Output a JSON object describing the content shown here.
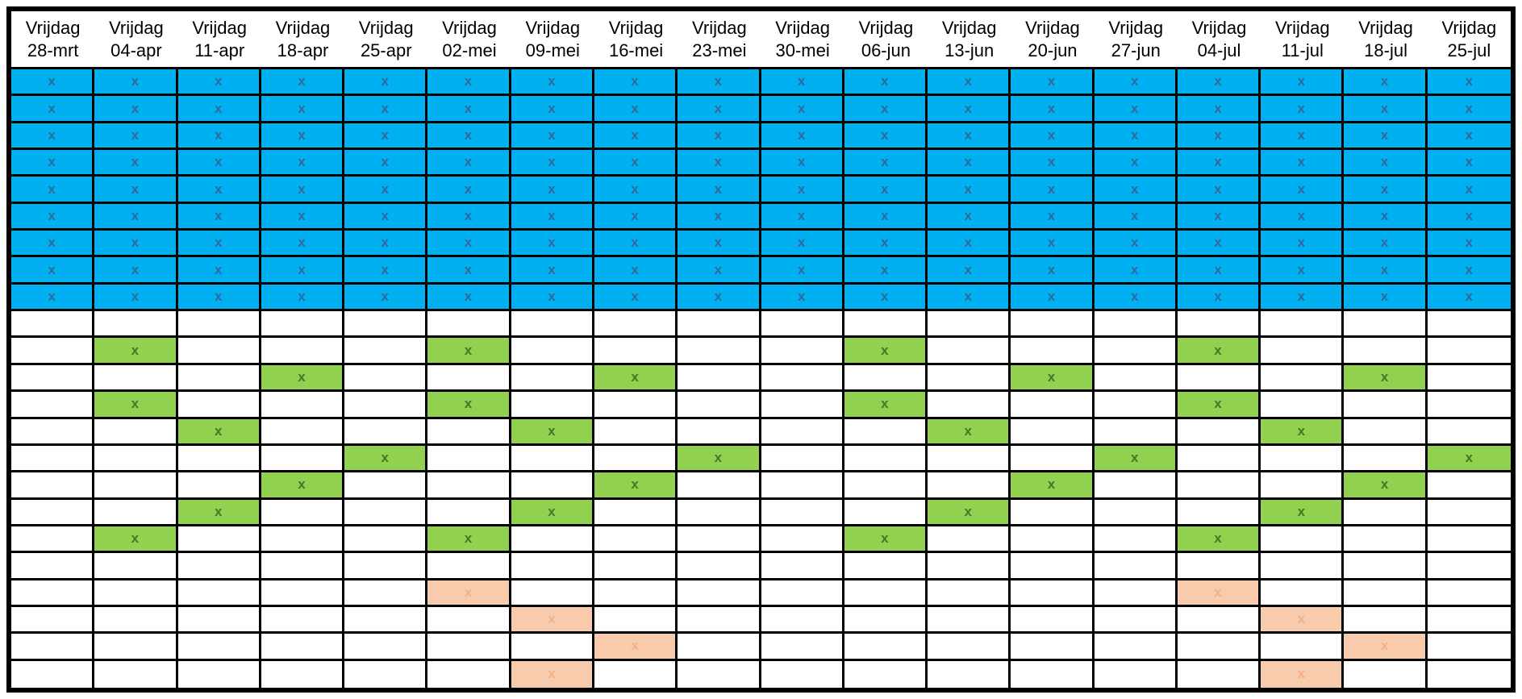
{
  "grid": {
    "day_label": "Vrijdag",
    "dates": [
      "28-mrt",
      "04-apr",
      "11-apr",
      "18-apr",
      "25-apr",
      "02-mei",
      "09-mei",
      "16-mei",
      "23-mei",
      "30-mei",
      "06-jun",
      "13-jun",
      "20-jun",
      "27-jun",
      "04-jul",
      "11-jul",
      "18-jul",
      "25-jul"
    ],
    "mark": "x",
    "colors": {
      "background": "#FFFFFF",
      "border": "#000000",
      "header_text": "#000000",
      "blue_fill": "#00B0F0",
      "blue_mark": "#30699C",
      "green_fill": "#92D050",
      "green_mark": "#3A7D23",
      "peach_fill": "#F8CBAD",
      "peach_mark": "#F4B183"
    },
    "rows": [
      {
        "fill": "blue",
        "marked": [
          1,
          2,
          3,
          4,
          5,
          6,
          7,
          8,
          9,
          10,
          11,
          12,
          13,
          14,
          15,
          16,
          17,
          18
        ]
      },
      {
        "fill": "blue",
        "marked": [
          1,
          2,
          3,
          4,
          5,
          6,
          7,
          8,
          9,
          10,
          11,
          12,
          13,
          14,
          15,
          16,
          17,
          18
        ]
      },
      {
        "fill": "blue",
        "marked": [
          1,
          2,
          3,
          4,
          5,
          6,
          7,
          8,
          9,
          10,
          11,
          12,
          13,
          14,
          15,
          16,
          17,
          18
        ]
      },
      {
        "fill": "blue",
        "marked": [
          1,
          2,
          3,
          4,
          5,
          6,
          7,
          8,
          9,
          10,
          11,
          12,
          13,
          14,
          15,
          16,
          17,
          18
        ]
      },
      {
        "fill": "blue",
        "marked": [
          1,
          2,
          3,
          4,
          5,
          6,
          7,
          8,
          9,
          10,
          11,
          12,
          13,
          14,
          15,
          16,
          17,
          18
        ]
      },
      {
        "fill": "blue",
        "marked": [
          1,
          2,
          3,
          4,
          5,
          6,
          7,
          8,
          9,
          10,
          11,
          12,
          13,
          14,
          15,
          16,
          17,
          18
        ]
      },
      {
        "fill": "blue",
        "marked": [
          1,
          2,
          3,
          4,
          5,
          6,
          7,
          8,
          9,
          10,
          11,
          12,
          13,
          14,
          15,
          16,
          17,
          18
        ]
      },
      {
        "fill": "blue",
        "marked": [
          1,
          2,
          3,
          4,
          5,
          6,
          7,
          8,
          9,
          10,
          11,
          12,
          13,
          14,
          15,
          16,
          17,
          18
        ]
      },
      {
        "fill": "blue",
        "marked": [
          1,
          2,
          3,
          4,
          5,
          6,
          7,
          8,
          9,
          10,
          11,
          12,
          13,
          14,
          15,
          16,
          17,
          18
        ]
      },
      {
        "fill": "none",
        "marked": []
      },
      {
        "fill": "green",
        "marked": [
          2,
          6,
          11,
          15
        ]
      },
      {
        "fill": "green",
        "marked": [
          4,
          8,
          13,
          17
        ]
      },
      {
        "fill": "green",
        "marked": [
          2,
          6,
          11,
          15
        ]
      },
      {
        "fill": "green",
        "marked": [
          3,
          7,
          12,
          16
        ]
      },
      {
        "fill": "green",
        "marked": [
          5,
          9,
          14,
          18
        ]
      },
      {
        "fill": "green",
        "marked": [
          4,
          8,
          13,
          17
        ]
      },
      {
        "fill": "green",
        "marked": [
          3,
          7,
          12,
          16
        ]
      },
      {
        "fill": "green",
        "marked": [
          2,
          6,
          11,
          15
        ]
      },
      {
        "fill": "none",
        "marked": []
      },
      {
        "fill": "peach",
        "marked": [
          6,
          15
        ]
      },
      {
        "fill": "peach",
        "marked": [
          7,
          16
        ]
      },
      {
        "fill": "peach",
        "marked": [
          8,
          17
        ]
      },
      {
        "fill": "peach",
        "marked": [
          7,
          16
        ]
      }
    ]
  }
}
